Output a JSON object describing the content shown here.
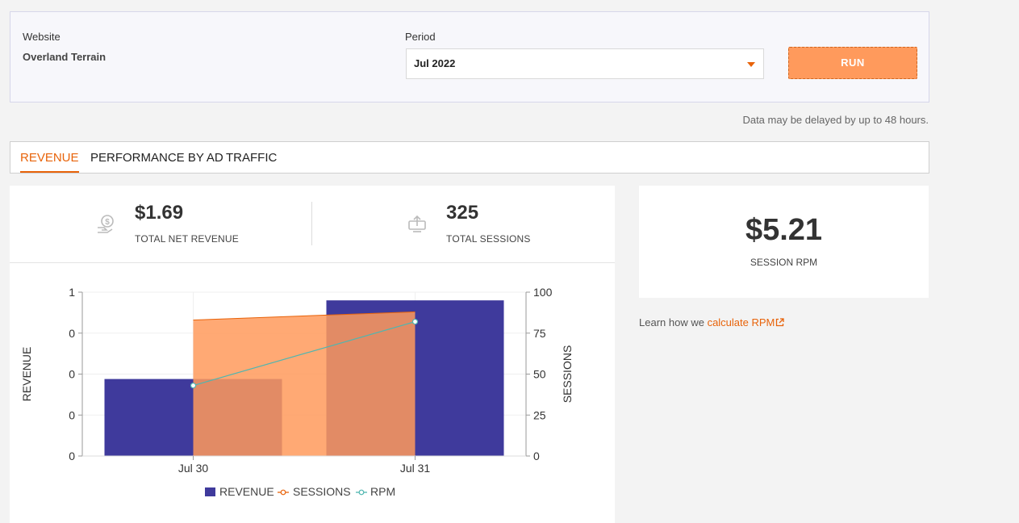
{
  "filters": {
    "website_label": "Website",
    "website_value": "Overland Terrain",
    "period_label": "Period",
    "period_value": "Jul 2022",
    "run_label": "RUN"
  },
  "delay_note": "Data may be delayed by up to 48 hours.",
  "tabs": [
    {
      "label": "REVENUE",
      "active": true
    },
    {
      "label": "PERFORMANCE BY AD",
      "active": false
    },
    {
      "label": "TRAFFIC",
      "active": false
    }
  ],
  "stats": {
    "revenue_value": "$1.69",
    "revenue_label": "TOTAL NET REVENUE",
    "revenue_icon": "money-exchange-icon",
    "sessions_value": "325",
    "sessions_label": "TOTAL SESSIONS",
    "sessions_icon": "upload-monitor-icon"
  },
  "rpm": {
    "value": "$5.21",
    "label": "SESSION RPM",
    "learn_prefix": "Learn how we ",
    "learn_link": "calculate RPM",
    "link_icon": "external-link-icon"
  },
  "colors": {
    "accent": "#e8630a",
    "revenue": "#3f3a9c",
    "sessions": "#ff9a5c",
    "rpm": "#4fb6b0"
  },
  "chart_data": {
    "type": "bar",
    "categories": [
      "Jul 30",
      "Jul 31"
    ],
    "series": [
      {
        "name": "REVENUE",
        "type": "bar",
        "axis": "left",
        "values": [
          0.47,
          0.95
        ]
      },
      {
        "name": "SESSIONS",
        "type": "area",
        "axis": "right",
        "values": [
          83,
          88
        ]
      },
      {
        "name": "RPM",
        "type": "line",
        "axis": "left",
        "values": [
          0.43,
          0.82
        ]
      }
    ],
    "ylabel": "REVENUE",
    "y2label": "SESSIONS",
    "y_ticks": [
      "1",
      "0",
      "0",
      "0",
      "0"
    ],
    "y2_ticks": [
      "100",
      "75",
      "50",
      "25",
      "0"
    ],
    "ylim": [
      0,
      1
    ],
    "y2lim": [
      0,
      100
    ],
    "legend": "bottom"
  }
}
